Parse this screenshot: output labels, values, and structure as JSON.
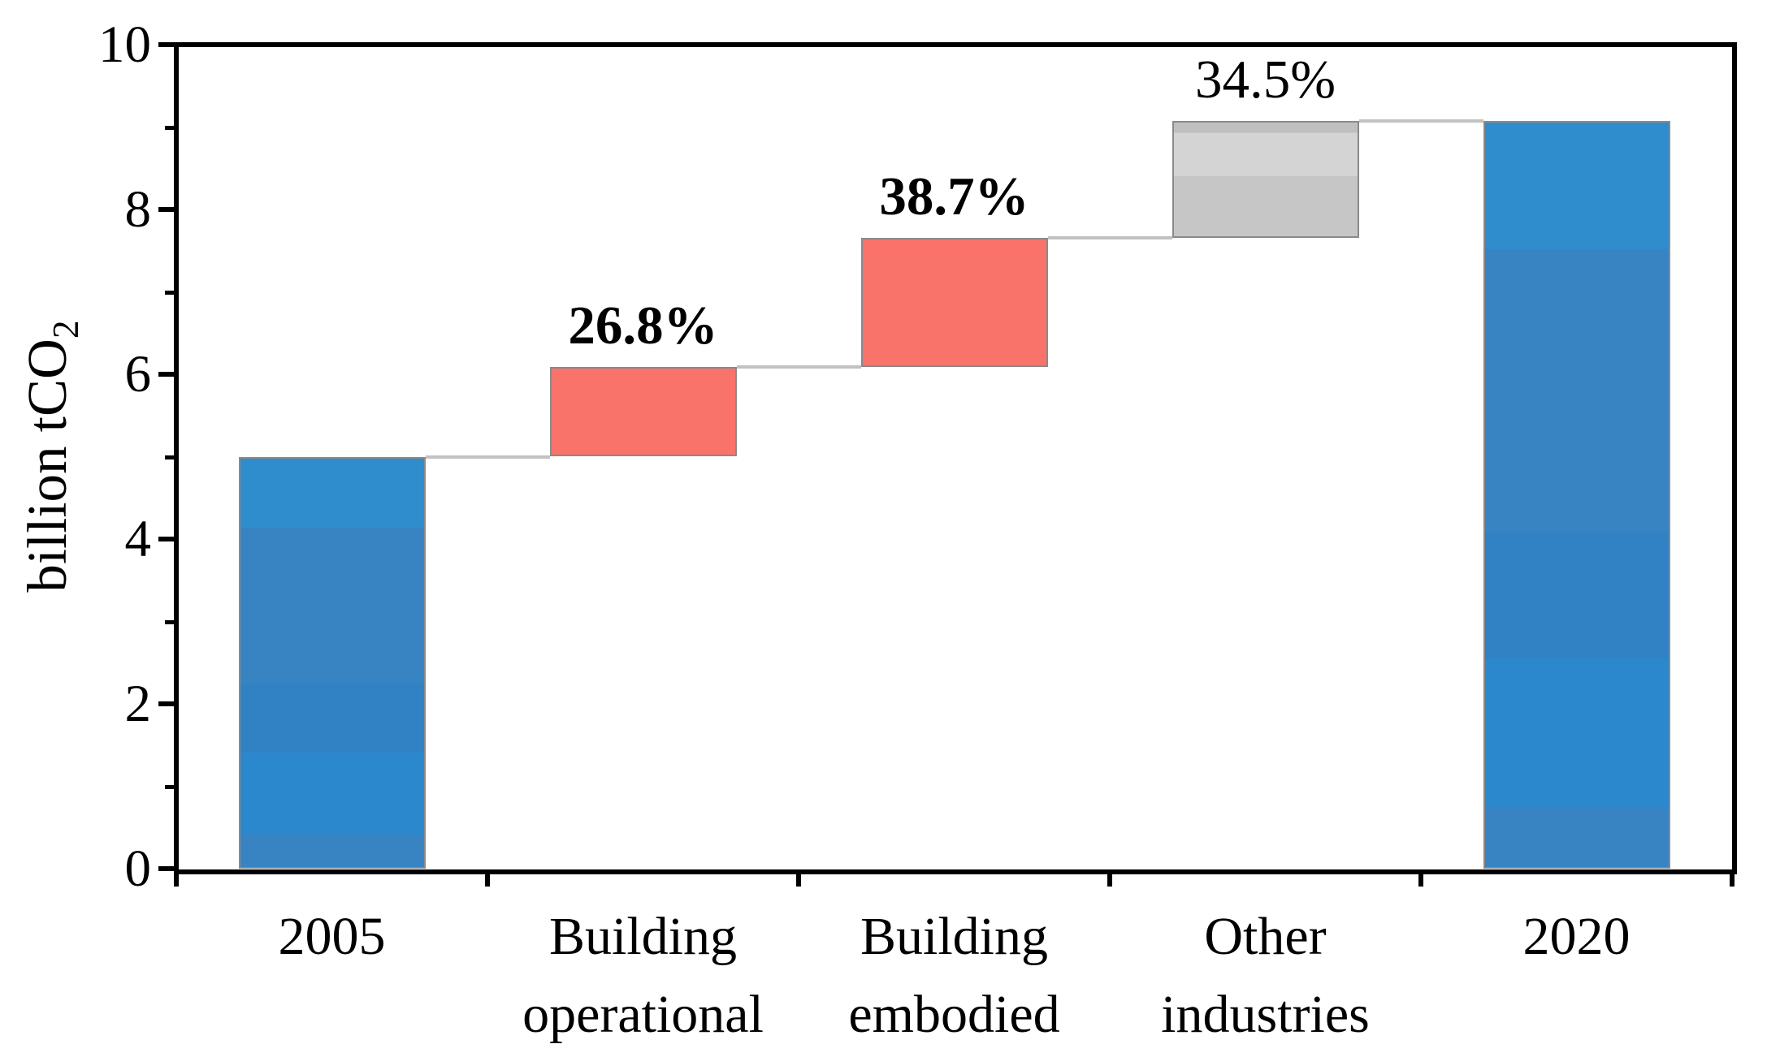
{
  "figure_title": "",
  "y_axis": {
    "label_main": "billion tCO",
    "label_sub": "2",
    "min": 0,
    "max": 10,
    "major_ticks": [
      "0",
      "2",
      "4",
      "6",
      "8",
      "10"
    ],
    "minor_ticks": [
      1,
      3,
      5,
      7,
      9
    ]
  },
  "chart_data": {
    "type": "bar",
    "subtype": "waterfall",
    "title": "",
    "xlabel": "",
    "ylabel": "billion tCO2",
    "ylim": [
      0,
      10
    ],
    "grid": false,
    "legend": "none",
    "categories": [
      "2005",
      "Building operational",
      "Building embodied",
      "Other industries",
      "2020"
    ],
    "bars": [
      {
        "label_lines": [
          "2005"
        ],
        "start": 0,
        "end": 5.0,
        "color_key": "blue",
        "pct_label": "",
        "pct_bold": false
      },
      {
        "label_lines": [
          "Building",
          "operational"
        ],
        "start": 5.0,
        "end": 6.09,
        "color_key": "red",
        "pct_label": "26.8%",
        "pct_bold": true
      },
      {
        "label_lines": [
          "Building",
          "embodied"
        ],
        "start": 6.09,
        "end": 7.66,
        "color_key": "red",
        "pct_label": "38.7%",
        "pct_bold": true
      },
      {
        "label_lines": [
          "Other",
          "industries"
        ],
        "start": 7.66,
        "end": 9.07,
        "color_key": "gray",
        "pct_label": "34.5%",
        "pct_bold": false
      },
      {
        "label_lines": [
          "2020"
        ],
        "start": 0,
        "end": 9.07,
        "color_key": "blue",
        "pct_label": "",
        "pct_bold": false
      }
    ],
    "connectors": [
      {
        "after_bar": 0,
        "level": 5.0
      },
      {
        "after_bar": 1,
        "level": 6.09
      },
      {
        "after_bar": 2,
        "level": 7.66
      },
      {
        "after_bar": 3,
        "level": 9.07
      }
    ]
  },
  "colors": {
    "blue": "#3884c2",
    "red": "#f9736b",
    "gray": "#cacaca",
    "bar_border": "#8a8a8a",
    "connector": "#c2c2c2",
    "axis": "#000000",
    "background": "#ffffff"
  }
}
